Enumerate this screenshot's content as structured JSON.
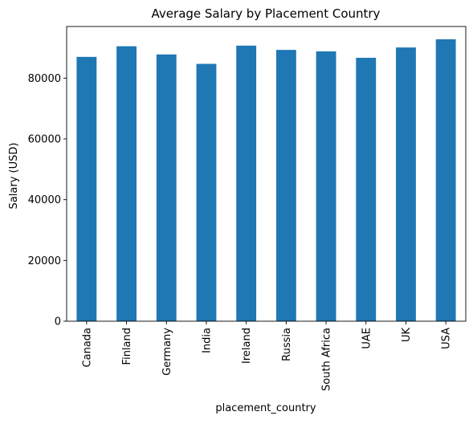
{
  "chart_data": {
    "type": "bar",
    "title": "Average Salary by Placement Country",
    "xlabel": "placement_country",
    "ylabel": "Salary (USD)",
    "categories": [
      "Canada",
      "Finland",
      "Germany",
      "India",
      "Ireland",
      "Russia",
      "South Africa",
      "UAE",
      "UK",
      "USA"
    ],
    "values": [
      87000,
      90500,
      87800,
      84700,
      90700,
      89300,
      88800,
      86700,
      90100,
      92800
    ],
    "ylim": [
      0,
      97000
    ],
    "yticks": [
      0,
      20000,
      40000,
      60000,
      80000
    ],
    "ytick_labels": [
      "0",
      "20000",
      "40000",
      "60000",
      "80000"
    ],
    "grid": false,
    "legend": "none",
    "bar_color": "#1f77b4"
  }
}
